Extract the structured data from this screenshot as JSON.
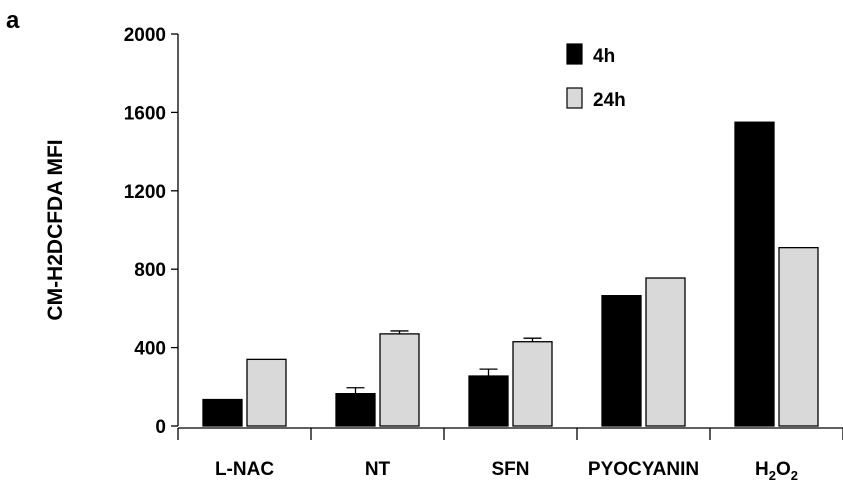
{
  "panel_label": "a",
  "chart_data": {
    "type": "bar",
    "categories": [
      "L-NAC",
      "NT",
      "SFN",
      "PYOCYANIN",
      "H2O2"
    ],
    "category_labels": [
      {
        "base": "L-NAC"
      },
      {
        "base": "NT"
      },
      {
        "base": "SFN"
      },
      {
        "base": "PYOCYANIN"
      },
      {
        "base": "H",
        "sub1": "2",
        "mid": "O",
        "sub2": "2"
      }
    ],
    "series": [
      {
        "name": "4h",
        "color": "#000000",
        "values": [
          135,
          165,
          255,
          665,
          1550
        ],
        "errors": [
          0,
          30,
          35,
          0,
          0
        ]
      },
      {
        "name": "24h",
        "color": "#d9d9d9",
        "values": [
          340,
          470,
          430,
          755,
          910
        ],
        "errors": [
          0,
          15,
          18,
          0,
          0
        ]
      }
    ],
    "title": "",
    "xlabel": "",
    "ylabel": "CM-H2DCFDA MFI",
    "ylim": [
      0,
      2000
    ],
    "yticks": [
      0,
      400,
      800,
      1200,
      1600,
      2000
    ],
    "ytick_labels": [
      "0",
      "400",
      "800",
      "1200",
      "1600",
      "2000"
    ],
    "grid": false,
    "legend_position": "top-center"
  }
}
